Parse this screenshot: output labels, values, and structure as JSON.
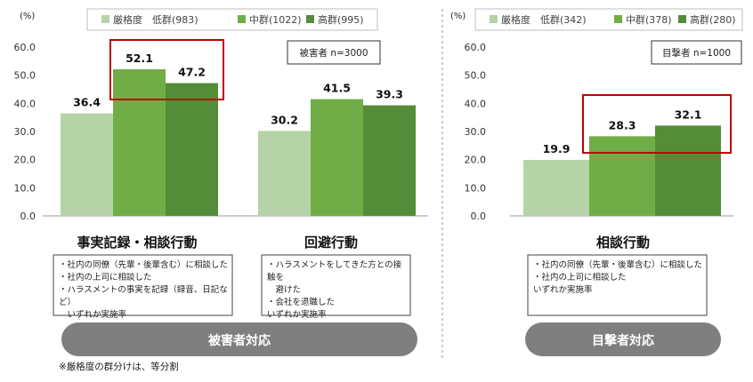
{
  "colors": {
    "low": "#b5d3a6",
    "mid": "#70ad47",
    "high": "#548d37",
    "highlight": "#c00000",
    "pill": "#7f7f7f",
    "grid_axis": "#999999"
  },
  "chart_data": [
    {
      "type": "bar",
      "unit_label": "(%)",
      "ylim": [
        0,
        60
      ],
      "y_ticks": [
        "0.0",
        "10.0",
        "20.0",
        "30.0",
        "40.0",
        "50.0",
        "60.0"
      ],
      "legend": {
        "prefix": "厳格度",
        "entries": [
          "低群(983)",
          "中群(1022)",
          "高群(995)"
        ]
      },
      "n_label": "被害者 n=3000",
      "categories": [
        "事実記録・相談行動",
        "回避行動"
      ],
      "series": [
        {
          "name": "低群(983)",
          "values": [
            36.4,
            30.2
          ]
        },
        {
          "name": "中群(1022)",
          "values": [
            52.1,
            41.5
          ]
        },
        {
          "name": "高群(995)",
          "values": [
            47.2,
            39.3
          ]
        }
      ],
      "data_labels": [
        [
          "36.4",
          "30.2"
        ],
        [
          "52.1",
          "41.5"
        ],
        [
          "47.2",
          "39.3"
        ]
      ],
      "highlighted_category": "事実記録・相談行動",
      "notes": [
        "・社内の同僚（先輩・後輩含む）に相談した\n・社内の上司に相談した\n・ハラスメントの事実を記録（録音、日記など）\n　いずれか実施率",
        "・ハラスメントをしてきた方との接触を\n　避けた\n・会社を退職した\n いずれか実施率"
      ],
      "group_label": "被害者対応"
    },
    {
      "type": "bar",
      "unit_label": "(%)",
      "ylim": [
        0,
        60
      ],
      "y_ticks": [
        "0.0",
        "10.0",
        "20.0",
        "30.0",
        "40.0",
        "50.0",
        "60.0"
      ],
      "legend": {
        "prefix": "厳格度",
        "entries": [
          "低群(342)",
          "中群(378)",
          "高群(280)"
        ]
      },
      "n_label": "目撃者 n=1000",
      "categories": [
        "相談行動"
      ],
      "series": [
        {
          "name": "低群(342)",
          "values": [
            19.9
          ]
        },
        {
          "name": "中群(378)",
          "values": [
            28.3
          ]
        },
        {
          "name": "高群(280)",
          "values": [
            32.1
          ]
        }
      ],
      "data_labels": [
        [
          "19.9"
        ],
        [
          "28.3"
        ],
        [
          "32.1"
        ]
      ],
      "highlighted_series": [
        "中群(378)",
        "高群(280)"
      ],
      "notes": [
        "・社内の同僚（先輩・後輩含む）に相談した\n・社内の上司に相談した\n いずれか実施率"
      ],
      "group_label": "目撃者対応"
    }
  ],
  "footnote": "※厳格度の群分けは、等分割"
}
